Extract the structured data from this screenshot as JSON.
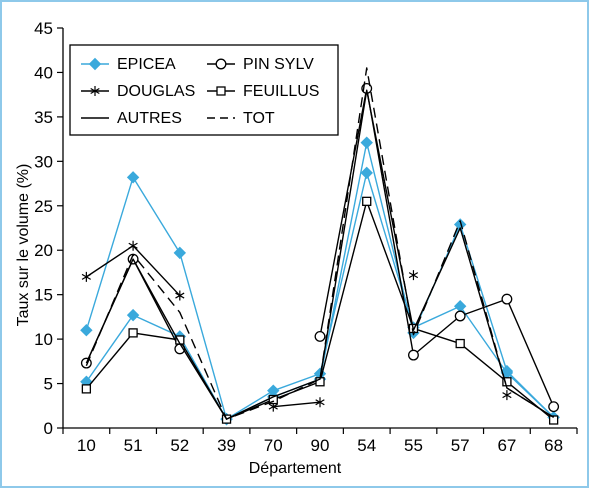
{
  "chart_data": {
    "type": "line",
    "xlabel": "Département",
    "ylabel": "Taux sur le volume (%)",
    "ylim": [
      0,
      45
    ],
    "yticks": [
      0,
      5,
      10,
      15,
      20,
      25,
      30,
      35,
      40,
      45
    ],
    "categories": [
      "10",
      "51",
      "52",
      "39",
      "70",
      "90",
      "54",
      "55",
      "57",
      "67",
      "68"
    ],
    "grid": false,
    "legend": {
      "position": "top-left",
      "entries": [
        {
          "label": "EPICEA",
          "series": "EPICEA"
        },
        {
          "label": "PIN SYLV",
          "series": "PIN SYLV"
        },
        {
          "label": "DOUGLAS",
          "series": "DOUGLAS"
        },
        {
          "label": "FEUILLUS",
          "series": "FEUILLUS"
        },
        {
          "label": "AUTRES",
          "series": "AUTRES"
        },
        {
          "label": "TOT",
          "series": "TOT"
        }
      ]
    },
    "series": [
      {
        "name": "EPICEA",
        "color": "#3aa9dc",
        "marker": "diamond",
        "values": [
          11,
          28.2,
          19.7,
          1,
          3.5,
          5.5,
          32.1,
          10.7,
          22.9,
          6.4,
          1.2
        ]
      },
      {
        "name": "EPICEA",
        "color": "#3aa9dc",
        "marker": "diamond",
        "values": [
          5.2,
          12.7,
          10.3,
          1,
          4.2,
          6.1,
          28.7,
          11.3,
          13.7,
          6.2,
          1.2
        ]
      },
      {
        "name": "PIN SYLV",
        "color": "#000000",
        "marker": "circle",
        "values": [
          7.3,
          19,
          8.9,
          null,
          null,
          10.3,
          38.2,
          8.2,
          12.6,
          14.5,
          2.4
        ]
      },
      {
        "name": "DOUGLAS",
        "color": "#000000",
        "marker": "star",
        "values": [
          17,
          20.5,
          14.9,
          null,
          2.4,
          2.9,
          null,
          17.2,
          null,
          3.7,
          null
        ]
      },
      {
        "name": "FEUILLUS",
        "color": "#000000",
        "marker": "square",
        "values": [
          4.4,
          10.7,
          9.9,
          1,
          3.2,
          5.2,
          25.5,
          11.2,
          9.5,
          5.2,
          0.9
        ]
      },
      {
        "name": "AUTRES",
        "color": "#000000",
        "marker": "none",
        "values": [
          7.3,
          19,
          9.5,
          1,
          3.5,
          5.5,
          38,
          11,
          22.5,
          4.5,
          1.2
        ]
      },
      {
        "name": "TOT",
        "color": "#000000",
        "marker": "none",
        "dashed": true,
        "values": [
          7,
          19.5,
          13,
          1,
          3,
          5.5,
          40.5,
          10.5,
          23.3,
          4.5,
          1.2
        ]
      }
    ]
  }
}
